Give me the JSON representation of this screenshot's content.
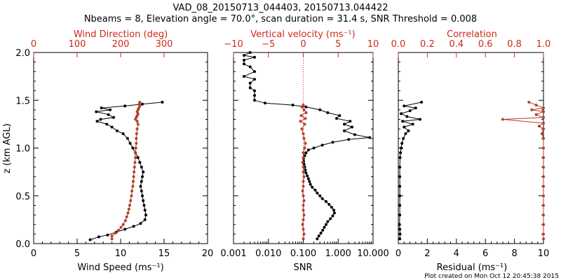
{
  "title_line1": "VAD_08_20150713_044403, 20150713.044422",
  "title_line2": "Nbeams = 8, Elevation angle = 70.0°, scan duration = 31.4 s, SNR Threshold = 0.008",
  "footer": "Plot created on Mon Oct 12 20:45:38 2015",
  "colors": {
    "black": "#000000",
    "red": "#b5402a",
    "axis_red": "#cc2a1a"
  },
  "chart_data": [
    {
      "type": "line",
      "ylabel": "z (km AGL)",
      "ylim": [
        0,
        2.0
      ],
      "yticks": [
        "0.0",
        "0.5",
        "1.0",
        "1.5",
        "2.0"
      ],
      "bottom_axis": {
        "label": "Wind Speed (ms⁻¹)",
        "range": [
          0,
          20
        ],
        "ticks": [
          "0",
          "5",
          "10",
          "15",
          "20"
        ]
      },
      "top_axis": {
        "label": "Wind Direction (deg)",
        "range": [
          0,
          400
        ],
        "ticks": [
          "0",
          "100",
          "200",
          "300"
        ]
      },
      "series": [
        {
          "axis": "bottom",
          "color": "black",
          "points": [
            [
              6.5,
              0.04
            ],
            [
              7.5,
              0.07
            ],
            [
              8.5,
              0.09
            ],
            [
              9.5,
              0.12
            ],
            [
              10.5,
              0.15
            ],
            [
              11.5,
              0.18
            ],
            [
              12.3,
              0.21
            ],
            [
              12.8,
              0.25
            ],
            [
              12.9,
              0.3
            ],
            [
              12.8,
              0.35
            ],
            [
              12.7,
              0.4
            ],
            [
              12.6,
              0.45
            ],
            [
              12.5,
              0.5
            ],
            [
              12.4,
              0.55
            ],
            [
              12.3,
              0.6
            ],
            [
              12.4,
              0.65
            ],
            [
              12.5,
              0.7
            ],
            [
              12.6,
              0.75
            ],
            [
              12.4,
              0.8
            ],
            [
              12.2,
              0.85
            ],
            [
              12.0,
              0.9
            ],
            [
              11.7,
              0.95
            ],
            [
              11.4,
              1.0
            ],
            [
              11.1,
              1.05
            ],
            [
              10.8,
              1.1
            ],
            [
              10.3,
              1.15
            ],
            [
              9.6,
              1.18
            ],
            [
              9.0,
              1.22
            ],
            [
              8.4,
              1.25
            ],
            [
              7.3,
              1.28
            ],
            [
              7.7,
              1.3
            ],
            [
              9.2,
              1.32
            ],
            [
              8.6,
              1.35
            ],
            [
              7.2,
              1.38
            ],
            [
              8.8,
              1.4
            ],
            [
              7.8,
              1.42
            ],
            [
              10.5,
              1.44
            ],
            [
              12.5,
              1.46
            ],
            [
              14.8,
              1.48
            ]
          ]
        },
        {
          "axis": "top",
          "color": "red",
          "points": [
            [
              180,
              0.05
            ],
            [
              180,
              0.08
            ],
            [
              188,
              0.11
            ],
            [
              195,
              0.14
            ],
            [
              201,
              0.17
            ],
            [
              206,
              0.2
            ],
            [
              211,
              0.24
            ],
            [
              214,
              0.28
            ],
            [
              217,
              0.32
            ],
            [
              219,
              0.36
            ],
            [
              221,
              0.4
            ],
            [
              223,
              0.45
            ],
            [
              225,
              0.5
            ],
            [
              226,
              0.55
            ],
            [
              228,
              0.6
            ],
            [
              229,
              0.65
            ],
            [
              230,
              0.7
            ],
            [
              231,
              0.75
            ],
            [
              232,
              0.8
            ],
            [
              233,
              0.85
            ],
            [
              234,
              0.9
            ],
            [
              234,
              0.95
            ],
            [
              235,
              1.0
            ],
            [
              236,
              1.05
            ],
            [
              236,
              1.1
            ],
            [
              237,
              1.15
            ],
            [
              238,
              1.2
            ],
            [
              240,
              1.25
            ],
            [
              238,
              1.28
            ],
            [
              234,
              1.3
            ],
            [
              236,
              1.32
            ],
            [
              238,
              1.34
            ],
            [
              240,
              1.36
            ],
            [
              238,
              1.38
            ],
            [
              240,
              1.4
            ],
            [
              242,
              1.42
            ],
            [
              244,
              1.44
            ],
            [
              243,
              1.46
            ],
            [
              244,
              1.48
            ]
          ]
        }
      ]
    },
    {
      "type": "line",
      "ylim": [
        0,
        2.0
      ],
      "bottom_axis": {
        "label": "SNR",
        "scale": "log",
        "range": [
          0.001,
          10
        ],
        "ticks": [
          "0.001",
          "0.010",
          "0.100",
          "1.000",
          "10.000"
        ]
      },
      "top_axis": {
        "label": "Vertical velocity (ms⁻¹)",
        "range": [
          -10,
          10
        ],
        "ticks": [
          "−10",
          "−5",
          "0",
          "5",
          "10"
        ],
        "zero_line": true
      },
      "series": [
        {
          "axis": "bottom",
          "color": "black",
          "points": [
            [
              0.25,
              0.05
            ],
            [
              0.28,
              0.08
            ],
            [
              0.32,
              0.11
            ],
            [
              0.36,
              0.14
            ],
            [
              0.4,
              0.17
            ],
            [
              0.45,
              0.2
            ],
            [
              0.5,
              0.23
            ],
            [
              0.6,
              0.26
            ],
            [
              0.7,
              0.29
            ],
            [
              0.78,
              0.32
            ],
            [
              0.75,
              0.35
            ],
            [
              0.65,
              0.38
            ],
            [
              0.55,
              0.41
            ],
            [
              0.45,
              0.44
            ],
            [
              0.35,
              0.47
            ],
            [
              0.3,
              0.5
            ],
            [
              0.25,
              0.53
            ],
            [
              0.22,
              0.56
            ],
            [
              0.18,
              0.59
            ],
            [
              0.16,
              0.62
            ],
            [
              0.15,
              0.65
            ],
            [
              0.14,
              0.68
            ],
            [
              0.13,
              0.71
            ],
            [
              0.12,
              0.74
            ],
            [
              0.115,
              0.77
            ],
            [
              0.11,
              0.8
            ],
            [
              0.105,
              0.83
            ],
            [
              0.103,
              0.86
            ],
            [
              0.102,
              0.89
            ],
            [
              0.11,
              0.92
            ],
            [
              0.12,
              0.95
            ],
            [
              0.14,
              0.98
            ],
            [
              0.2,
              1.0
            ],
            [
              0.35,
              1.03
            ],
            [
              0.7,
              1.06
            ],
            [
              2.0,
              1.09
            ],
            [
              8.0,
              1.11
            ],
            [
              3.0,
              1.14
            ],
            [
              1.5,
              1.18
            ],
            [
              2.5,
              1.22
            ],
            [
              1.5,
              1.25
            ],
            [
              2.2,
              1.28
            ],
            [
              0.9,
              1.31
            ],
            [
              1.1,
              1.34
            ],
            [
              0.5,
              1.37
            ],
            [
              0.3,
              1.4
            ],
            [
              0.12,
              1.43
            ],
            [
              0.05,
              1.45
            ],
            [
              0.008,
              1.47
            ],
            [
              0.004,
              1.5
            ],
            [
              0.004,
              1.55
            ],
            [
              0.004,
              1.6
            ],
            [
              0.003,
              1.63
            ],
            [
              0.003,
              1.68
            ],
            [
              0.004,
              1.72
            ],
            [
              0.002,
              1.75
            ],
            [
              0.004,
              1.8
            ],
            [
              0.003,
              1.85
            ],
            [
              0.002,
              1.88
            ],
            [
              0.002,
              1.92
            ],
            [
              0.004,
              1.95
            ],
            [
              0.002,
              1.97
            ],
            [
              0.003,
              2.0
            ]
          ]
        },
        {
          "axis": "top",
          "color": "red",
          "points": [
            [
              0.0,
              0.05
            ],
            [
              0.1,
              0.1
            ],
            [
              0.0,
              0.15
            ],
            [
              -0.1,
              0.2
            ],
            [
              0.0,
              0.25
            ],
            [
              0.1,
              0.3
            ],
            [
              0.0,
              0.35
            ],
            [
              0.0,
              0.4
            ],
            [
              0.1,
              0.45
            ],
            [
              0.0,
              0.5
            ],
            [
              -0.1,
              0.55
            ],
            [
              0.0,
              0.6
            ],
            [
              0.0,
              0.65
            ],
            [
              0.1,
              0.7
            ],
            [
              0.0,
              0.75
            ],
            [
              0.0,
              0.8
            ],
            [
              -0.1,
              0.85
            ],
            [
              0.0,
              0.9
            ],
            [
              0.0,
              0.95
            ],
            [
              0.2,
              1.0
            ],
            [
              0.3,
              1.05
            ],
            [
              0.1,
              1.1
            ],
            [
              0.0,
              1.15
            ],
            [
              -0.2,
              1.2
            ],
            [
              0.2,
              1.25
            ],
            [
              -0.4,
              1.28
            ],
            [
              0.3,
              1.31
            ],
            [
              -0.3,
              1.34
            ],
            [
              0.4,
              1.37
            ],
            [
              0.1,
              1.4
            ],
            [
              -0.2,
              1.43
            ],
            [
              0.0,
              1.45
            ]
          ]
        }
      ]
    },
    {
      "type": "line",
      "ylim": [
        0,
        2.0
      ],
      "bottom_axis": {
        "label": "Residual (ms⁻¹)",
        "range": [
          0,
          10
        ],
        "ticks": [
          "0",
          "2",
          "4",
          "6",
          "8",
          "10"
        ]
      },
      "top_axis": {
        "label": "Correlation",
        "range": [
          0,
          1
        ],
        "ticks": [
          "0.0",
          "0.2",
          "0.4",
          "0.6",
          "0.8",
          "1.0"
        ]
      },
      "series": [
        {
          "axis": "bottom",
          "color": "black",
          "points": [
            [
              0.1,
              0.05
            ],
            [
              0.12,
              0.1
            ],
            [
              0.1,
              0.15
            ],
            [
              0.08,
              0.2
            ],
            [
              0.1,
              0.3
            ],
            [
              0.1,
              0.4
            ],
            [
              0.1,
              0.5
            ],
            [
              0.1,
              0.6
            ],
            [
              0.1,
              0.7
            ],
            [
              0.1,
              0.8
            ],
            [
              0.12,
              0.9
            ],
            [
              0.15,
              0.95
            ],
            [
              0.2,
              1.0
            ],
            [
              0.25,
              1.05
            ],
            [
              0.35,
              1.1
            ],
            [
              0.5,
              1.15
            ],
            [
              0.7,
              1.18
            ],
            [
              0.4,
              1.22
            ],
            [
              1.0,
              1.25
            ],
            [
              0.3,
              1.28
            ],
            [
              1.5,
              1.3
            ],
            [
              0.6,
              1.33
            ],
            [
              0.2,
              1.36
            ],
            [
              0.8,
              1.39
            ],
            [
              1.2,
              1.42
            ],
            [
              0.4,
              1.44
            ],
            [
              1.6,
              1.48
            ]
          ]
        },
        {
          "axis": "top",
          "color": "red",
          "points": [
            [
              1.0,
              0.05
            ],
            [
              1.0,
              0.1
            ],
            [
              1.0,
              0.2
            ],
            [
              1.0,
              0.3
            ],
            [
              1.0,
              0.4
            ],
            [
              1.0,
              0.5
            ],
            [
              1.0,
              0.6
            ],
            [
              1.0,
              0.7
            ],
            [
              1.0,
              0.8
            ],
            [
              1.0,
              0.9
            ],
            [
              1.0,
              1.0
            ],
            [
              1.0,
              1.1
            ],
            [
              0.99,
              1.15
            ],
            [
              1.0,
              1.2
            ],
            [
              0.97,
              1.23
            ],
            [
              1.0,
              1.26
            ],
            [
              0.72,
              1.3
            ],
            [
              1.0,
              1.32
            ],
            [
              0.95,
              1.35
            ],
            [
              1.0,
              1.38
            ],
            [
              0.92,
              1.4
            ],
            [
              1.0,
              1.42
            ],
            [
              0.95,
              1.45
            ],
            [
              0.9,
              1.48
            ]
          ]
        }
      ]
    }
  ]
}
